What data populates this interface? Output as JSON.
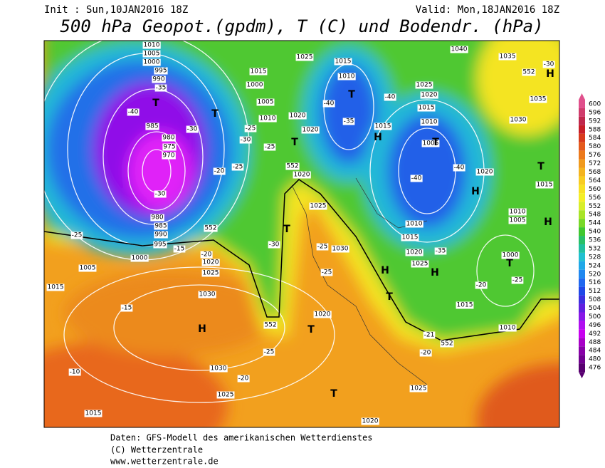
{
  "header": {
    "init": "Init : Sun,10JAN2016 18Z",
    "valid": "Valid: Mon,18JAN2016 18Z",
    "title": "500 hPa Geopot.(gpdm), T (C) und Bodendr. (hPa)"
  },
  "footer": [
    "Daten: GFS-Modell des amerikanischen Wetterdienstes",
    "(C) Wetterzentrale",
    "www.wetterzentrale.de"
  ],
  "colorbar": {
    "levels": [
      600,
      596,
      592,
      588,
      584,
      580,
      576,
      572,
      568,
      564,
      560,
      556,
      552,
      548,
      544,
      540,
      536,
      532,
      528,
      524,
      520,
      516,
      512,
      508,
      504,
      500,
      496,
      492,
      488,
      484,
      480,
      476
    ],
    "colors": [
      "#e0508c",
      "#d03c6c",
      "#c0284c",
      "#c81e28",
      "#d83a1c",
      "#e45a1c",
      "#ec7a1c",
      "#f09a1e",
      "#f4b420",
      "#f8cc22",
      "#f8e024",
      "#f4ee26",
      "#d8ee2a",
      "#a8e428",
      "#78d828",
      "#40c830",
      "#28c068",
      "#20c0a0",
      "#20c0d0",
      "#20a8e8",
      "#2088f0",
      "#2068f0",
      "#2048e8",
      "#3c30e0",
      "#6020e0",
      "#8818e8",
      "#b010f0",
      "#c800f0",
      "#a800c8",
      "#8800a8",
      "#700090",
      "#580070"
    ]
  },
  "map_labels": [
    "1010",
    "1005",
    "1000",
    "995",
    "990",
    "-35",
    "-40",
    "985",
    "980",
    "975",
    "970",
    "-30",
    "980",
    "985",
    "990",
    "995",
    "1000",
    "1005",
    "1015",
    "-15",
    "1030",
    "1025",
    "1020",
    "-10",
    "1030",
    "1025",
    "-20",
    "-25",
    "1015",
    "1020",
    "1025",
    "-20",
    "-21",
    "552",
    "1010",
    "1015",
    "-25",
    "1000",
    "-20",
    "1005",
    "1010",
    "1015",
    "1030",
    "1035",
    "1035",
    "1040",
    "-30",
    "552",
    "1025",
    "1020",
    "1015",
    "1010",
    "1005",
    "-40",
    "-40",
    "1020",
    "1010",
    "1015",
    "1020",
    "1025",
    "-35",
    "1030",
    "-25",
    "-30",
    "-25",
    "1025",
    "1020",
    "552",
    "1020",
    "1020",
    "1010",
    "1005",
    "1000",
    "1015",
    "1025",
    "1015",
    "1010",
    "-40",
    "-35",
    "1015",
    "-40",
    "-30",
    "-25",
    "-30",
    "-25",
    "-20",
    "-25",
    "-20",
    "-15",
    "1020",
    "-25",
    "552",
    "552"
  ],
  "map_markers": [
    "T",
    "T",
    "T",
    "T",
    "T",
    "T",
    "T",
    "T",
    "T",
    "T",
    "T",
    "H",
    "H",
    "H",
    "H",
    "H",
    "H",
    "H"
  ]
}
